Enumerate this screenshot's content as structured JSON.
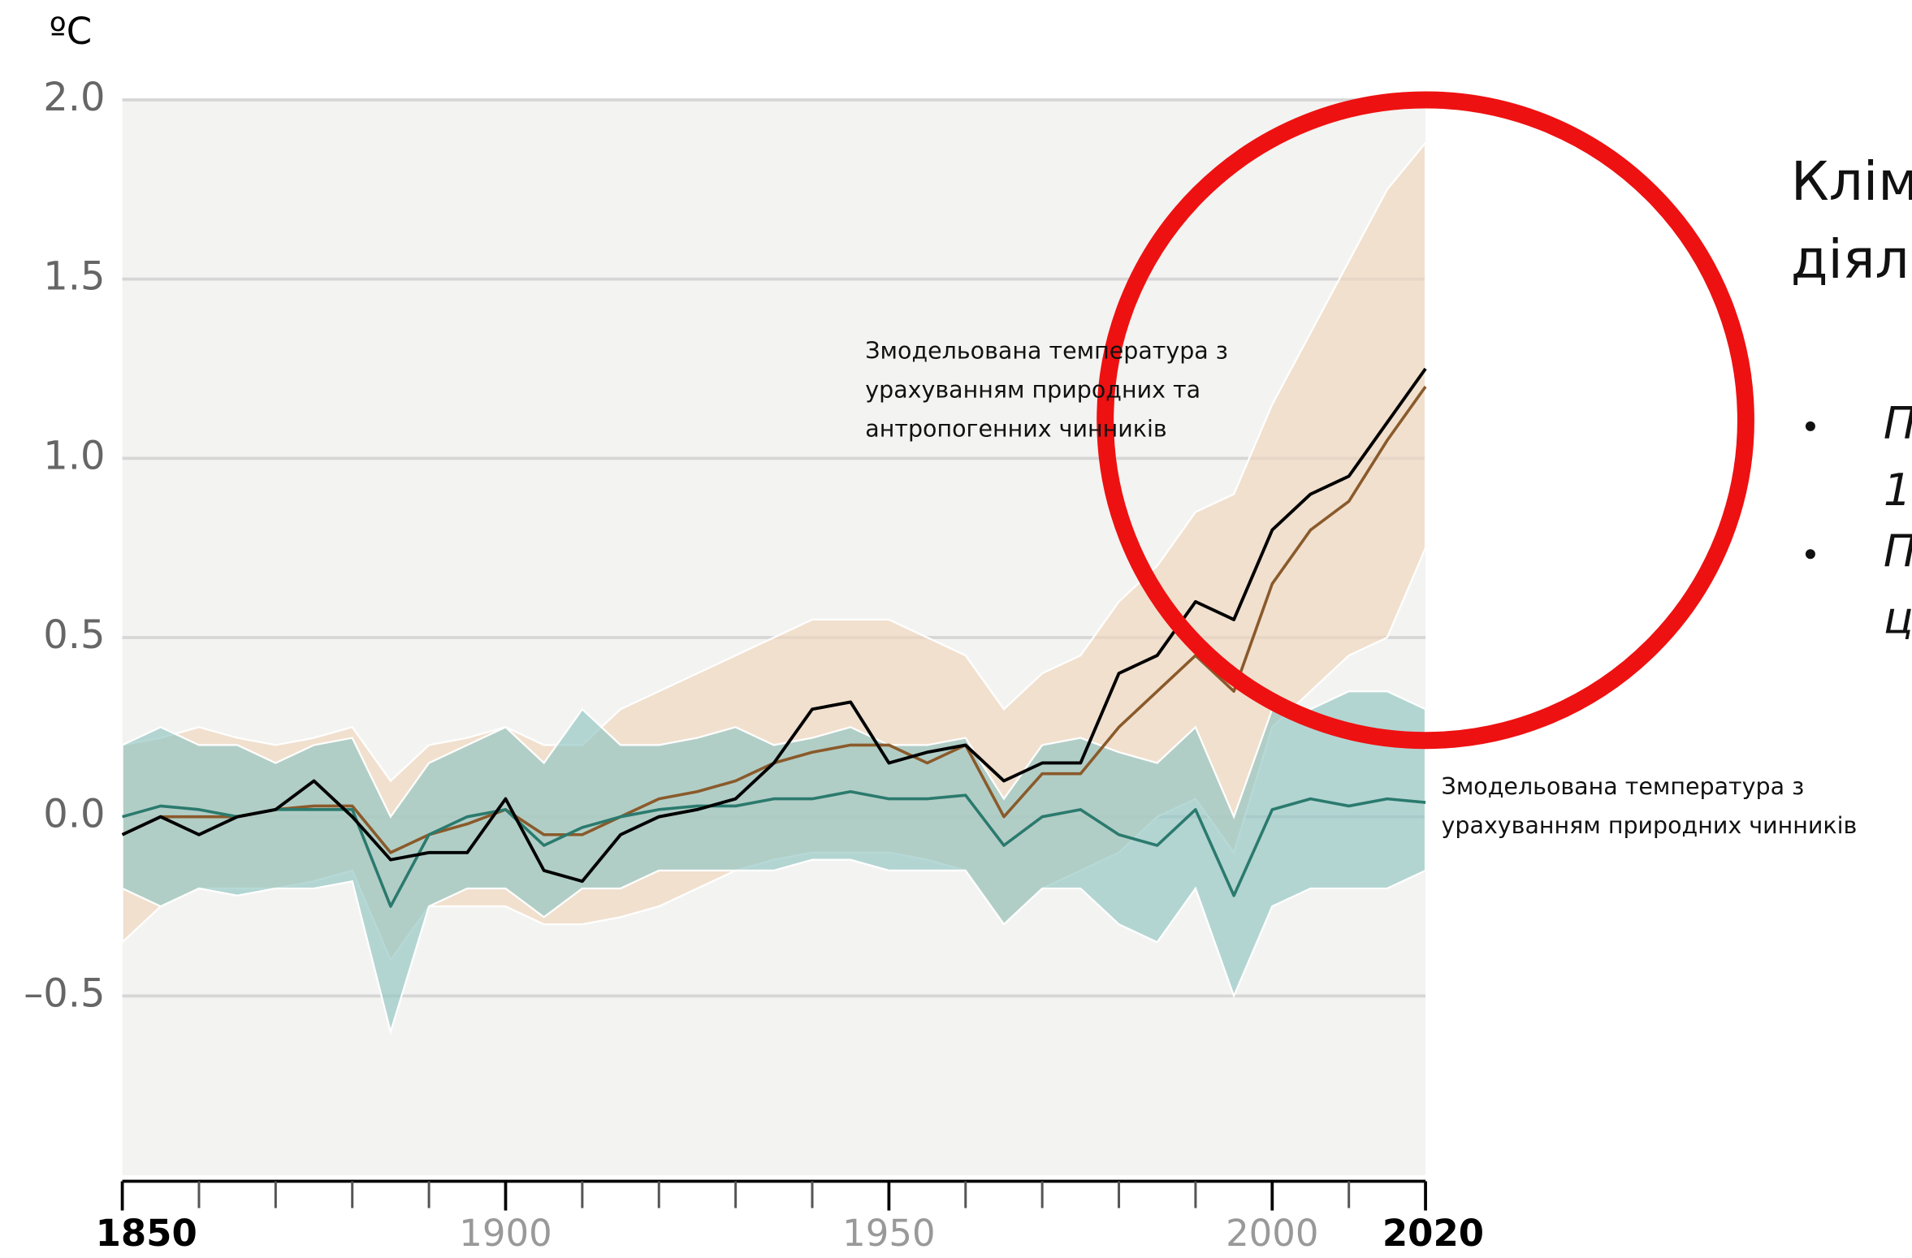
{
  "chart_data": {
    "type": "line",
    "y_unit": "ºC",
    "x": [
      1850,
      1855,
      1860,
      1865,
      1870,
      1875,
      1880,
      1885,
      1890,
      1895,
      1900,
      1905,
      1910,
      1915,
      1920,
      1925,
      1930,
      1935,
      1940,
      1945,
      1950,
      1955,
      1960,
      1965,
      1970,
      1975,
      1980,
      1985,
      1990,
      1995,
      2000,
      2005,
      2010,
      2015,
      2020
    ],
    "series": [
      {
        "color": "#8a5a2b",
        "band_color": "#f0d6bc",
        "values": [
          -0.05,
          0.0,
          0.0,
          0.0,
          0.02,
          0.03,
          0.03,
          -0.1,
          -0.05,
          -0.02,
          0.02,
          -0.05,
          -0.05,
          0.0,
          0.05,
          0.07,
          0.1,
          0.15,
          0.18,
          0.2,
          0.2,
          0.15,
          0.2,
          0.0,
          0.12,
          0.12,
          0.25,
          0.35,
          0.45,
          0.35,
          0.65,
          0.8,
          0.88,
          1.05,
          1.2
        ],
        "upper": [
          0.2,
          0.22,
          0.25,
          0.22,
          0.2,
          0.22,
          0.25,
          0.1,
          0.2,
          0.22,
          0.25,
          0.2,
          0.2,
          0.3,
          0.35,
          0.4,
          0.45,
          0.5,
          0.55,
          0.55,
          0.55,
          0.5,
          0.45,
          0.3,
          0.4,
          0.45,
          0.6,
          0.7,
          0.85,
          0.9,
          1.15,
          1.35,
          1.55,
          1.75,
          1.88
        ],
        "lower": [
          -0.35,
          -0.25,
          -0.2,
          -0.2,
          -0.2,
          -0.18,
          -0.15,
          -0.4,
          -0.25,
          -0.25,
          -0.25,
          -0.3,
          -0.3,
          -0.28,
          -0.25,
          -0.2,
          -0.15,
          -0.12,
          -0.1,
          -0.1,
          -0.1,
          -0.12,
          -0.15,
          -0.3,
          -0.2,
          -0.15,
          -0.1,
          0.0,
          0.05,
          -0.1,
          0.25,
          0.35,
          0.45,
          0.5,
          0.75
        ]
      },
      {
        "color": "#2b7a6e",
        "band_color": "#8fc4c1",
        "values": [
          0.0,
          0.03,
          0.02,
          0.0,
          0.02,
          0.02,
          0.02,
          -0.25,
          -0.05,
          0.0,
          0.02,
          -0.08,
          -0.03,
          0.0,
          0.02,
          0.03,
          0.03,
          0.05,
          0.05,
          0.07,
          0.05,
          0.05,
          0.06,
          -0.08,
          0.0,
          0.02,
          -0.05,
          -0.08,
          0.02,
          -0.22,
          0.02,
          0.05,
          0.03,
          0.05,
          0.04
        ],
        "upper": [
          0.2,
          0.25,
          0.2,
          0.2,
          0.15,
          0.2,
          0.22,
          0.0,
          0.15,
          0.2,
          0.25,
          0.15,
          0.3,
          0.2,
          0.2,
          0.22,
          0.25,
          0.2,
          0.22,
          0.25,
          0.2,
          0.2,
          0.22,
          0.05,
          0.2,
          0.22,
          0.18,
          0.15,
          0.25,
          0.0,
          0.3,
          0.3,
          0.35,
          0.35,
          0.3
        ],
        "lower": [
          -0.2,
          -0.25,
          -0.2,
          -0.22,
          -0.2,
          -0.2,
          -0.18,
          -0.6,
          -0.25,
          -0.2,
          -0.2,
          -0.28,
          -0.2,
          -0.2,
          -0.15,
          -0.15,
          -0.15,
          -0.15,
          -0.12,
          -0.12,
          -0.15,
          -0.15,
          -0.15,
          -0.3,
          -0.2,
          -0.2,
          -0.3,
          -0.35,
          -0.2,
          -0.5,
          -0.25,
          -0.2,
          -0.2,
          -0.2,
          -0.15
        ]
      },
      {
        "color": "#000000",
        "values": [
          -0.05,
          0.0,
          -0.05,
          0.0,
          0.02,
          0.1,
          0.0,
          -0.12,
          -0.1,
          -0.1,
          0.05,
          -0.15,
          -0.18,
          -0.05,
          0.0,
          0.02,
          0.05,
          0.15,
          0.3,
          0.32,
          0.15,
          0.18,
          0.2,
          0.1,
          0.15,
          0.15,
          0.4,
          0.45,
          0.6,
          0.55,
          0.8,
          0.9,
          0.95,
          1.1,
          1.25
        ]
      }
    ],
    "xlim": [
      1850,
      2020
    ],
    "xticks": [
      1850,
      1900,
      1950,
      2000,
      2020
    ],
    "xticks_bold": [
      true,
      false,
      false,
      false,
      true
    ],
    "xminor_ticks": [
      1860,
      1870,
      1880,
      1890,
      1910,
      1920,
      1930,
      1940,
      1960,
      1970,
      1980,
      1990,
      2010
    ],
    "ylim": [
      -1.0,
      2.0
    ],
    "yticks": [
      {
        "value": 2.0,
        "label": "2.0"
      },
      {
        "value": 1.5,
        "label": "1.5"
      },
      {
        "value": 1.0,
        "label": "1.0"
      },
      {
        "value": 0.5,
        "label": "0.5"
      },
      {
        "value": 0.0,
        "label": "0.0"
      },
      {
        "value": -0.5,
        "label": "–0.5"
      }
    ],
    "grid": true,
    "annotations": [
      {
        "lines": [
          "Змодельована температура з",
          "урахуванням природних та",
          "антропогенних чинників"
        ]
      },
      {
        "lines": [
          "Змодельована температура з",
          "урахуванням природних чинників"
        ]
      }
    ]
  },
  "side_text": {
    "heading": [
      "Клім",
      "діял"
    ],
    "bullets": [
      "П",
      "1",
      "П",
      "ц"
    ]
  }
}
